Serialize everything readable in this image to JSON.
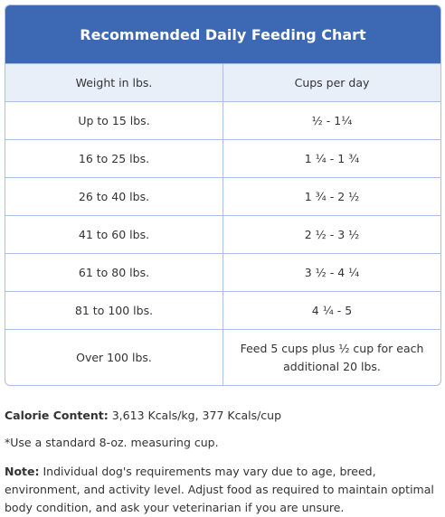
{
  "header": {
    "title": "Recommended Daily Feeding Chart"
  },
  "table": {
    "columns": [
      "Weight in lbs.",
      "Cups per day"
    ],
    "rows": [
      [
        "Up to 15 lbs.",
        "½ - 1¼"
      ],
      [
        "16 to 25 lbs.",
        "1 ¼ - 1 ¾"
      ],
      [
        "26 to 40 lbs.",
        "1 ¾ - 2 ½"
      ],
      [
        "41 to 60 lbs.",
        "2 ½ - 3 ½"
      ],
      [
        "61 to 80 lbs.",
        "3 ½ - 4 ¼"
      ],
      [
        "81 to 100 lbs.",
        "4 ¼ - 5"
      ],
      [
        "Over 100 lbs.",
        "Feed 5 cups plus ½ cup for each additional 20 lbs."
      ]
    ]
  },
  "calorie": {
    "label": "Calorie Content:",
    "text": "3,613 Kcals/kg, 377 Kcals/cup"
  },
  "footnote": "*Use a standard 8-oz. measuring cup.",
  "note": {
    "label": "Note:",
    "text": "Individual dog's requirements may vary due to age, breed, environment, and activity level. Adjust food as required to maintain optimal body condition, and ask your veterinarian if you are unsure."
  }
}
